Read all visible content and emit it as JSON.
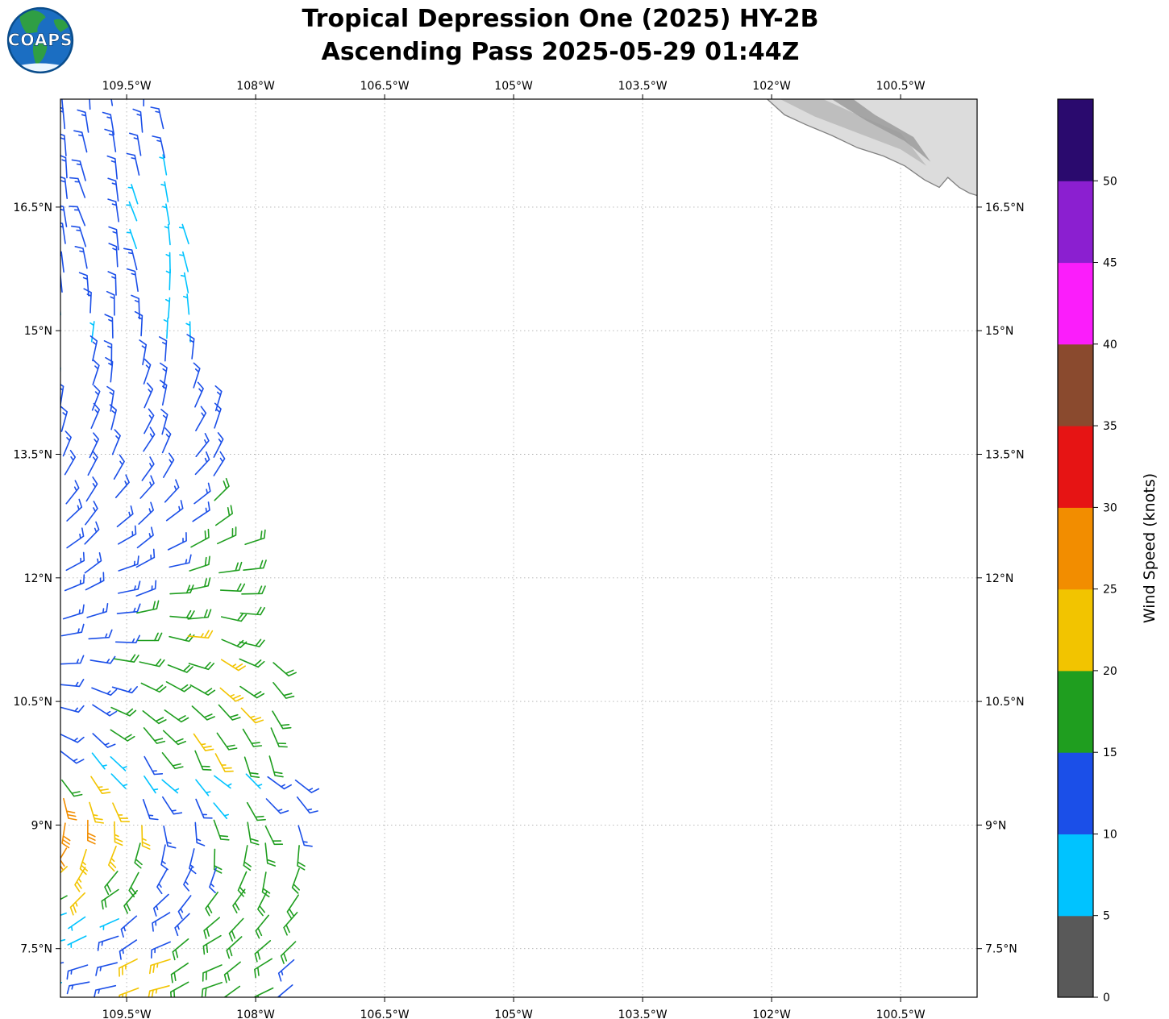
{
  "logo": {
    "text": "COAPS"
  },
  "chart_data": {
    "type": "wind_barb_map",
    "title": "Tropical Depression One (2025) HY-2B",
    "subtitle": "Ascending Pass 2025-05-29 01:44Z",
    "grid": "dashed",
    "x_axis": {
      "ticks": [
        "109.5°W",
        "108°W",
        "106.5°W",
        "105°W",
        "103.5°W",
        "102°W",
        "100.5°W"
      ],
      "tick_lons": [
        -109.5,
        -108,
        -106.5,
        -105,
        -103.5,
        -102,
        -100.5
      ],
      "lon_range": [
        -110.27,
        -99.61
      ]
    },
    "y_axis": {
      "ticks": [
        "16.5°N",
        "15°N",
        "13.5°N",
        "12°N",
        "10.5°N",
        "9°N",
        "7.5°N"
      ],
      "tick_lats": [
        16.5,
        15,
        13.5,
        12,
        10.5,
        9,
        7.5
      ],
      "lat_range": [
        6.91,
        17.81
      ]
    },
    "colorbar": {
      "label": "Wind Speed (knots)",
      "units": "knots",
      "tick_values": [
        0,
        5,
        10,
        15,
        20,
        25,
        30,
        35,
        40,
        45,
        50
      ],
      "vmax": 55,
      "segments": [
        {
          "min": 0,
          "max": 5,
          "color": "#595959"
        },
        {
          "min": 5,
          "max": 10,
          "color": "#00c3ff"
        },
        {
          "min": 10,
          "max": 15,
          "color": "#1b4fe8"
        },
        {
          "min": 15,
          "max": 20,
          "color": "#1f9e1f"
        },
        {
          "min": 20,
          "max": 25,
          "color": "#f2c400"
        },
        {
          "min": 25,
          "max": 30,
          "color": "#f28d00"
        },
        {
          "min": 30,
          "max": 35,
          "color": "#e61414"
        },
        {
          "min": 35,
          "max": 40,
          "color": "#8a4a2e"
        },
        {
          "min": 40,
          "max": 45,
          "color": "#fb1dfb"
        },
        {
          "min": 45,
          "max": 50,
          "color": "#8b1fd0"
        },
        {
          "min": 50,
          "max": 55,
          "color": "#2a0a6e"
        }
      ]
    },
    "barbs": {
      "comment": "rows of wind barbs; row_format fields; speeds in knots from speed_codes; dir = direction wind is from (deg), ddir = per-column change eastward",
      "row_format": [
        "lat",
        "dir_from_deg",
        "ddir_per_col",
        "speed_codes"
      ],
      "lon0": -110.24,
      "dlon": 0.3,
      "speed_codes": {
        "C": 7,
        "B": 13,
        "G": 18,
        "Y": 23,
        "O": 28
      },
      "rows": [
        [
          17.7,
          355,
          0,
          "BBBB"
        ],
        [
          17.42,
          352,
          0,
          "BBBBB"
        ],
        [
          17.14,
          350,
          0,
          "BBBBB"
        ],
        [
          16.86,
          350,
          0,
          "BBBBC"
        ],
        [
          16.58,
          347,
          0,
          "BBBCC"
        ],
        [
          16.3,
          345,
          0,
          "BBBCC"
        ],
        [
          16.02,
          348,
          0,
          "BBBCCC"
        ],
        [
          15.74,
          352,
          0,
          "BBBBCC"
        ],
        [
          15.46,
          356,
          0,
          "BBBBCC"
        ],
        [
          15.18,
          0,
          0,
          "CBBBCC"
        ],
        [
          14.9,
          2,
          0,
          "CCBBCC"
        ],
        [
          14.62,
          6,
          0,
          "CBBBBB"
        ],
        [
          14.34,
          10,
          1,
          "CBBBBB"
        ],
        [
          14.06,
          14,
          1,
          "BBBBBBB"
        ],
        [
          13.78,
          18,
          1,
          "BBBBBBB"
        ],
        [
          13.5,
          22,
          2,
          "BBBBBBB"
        ],
        [
          13.22,
          27,
          2,
          "BBBBBBB"
        ],
        [
          12.94,
          33,
          3,
          "BBBBBBG"
        ],
        [
          12.66,
          40,
          3,
          "BBBBBBG"
        ],
        [
          12.38,
          48,
          3,
          "BBBBBGGG"
        ],
        [
          12.1,
          56,
          4,
          "BBBBBGGG"
        ],
        [
          11.82,
          64,
          4,
          "BBBBGGGG"
        ],
        [
          11.54,
          72,
          4,
          "BBBGGGGG"
        ],
        [
          11.26,
          82,
          4,
          "BBBGGYGG"
        ],
        [
          10.98,
          92,
          4,
          "BBGGGGYGG"
        ],
        [
          10.7,
          102,
          4,
          "BBBGGGYGG"
        ],
        [
          10.42,
          112,
          4,
          "BBGGGGGYG"
        ],
        [
          10.14,
          122,
          4,
          "BBGGGYGGG"
        ],
        [
          9.86,
          132,
          4,
          "BCCBGGYGG"
        ],
        [
          9.58,
          145,
          -2,
          "GYCCCCCCBB"
        ],
        [
          9.3,
          165,
          -3,
          "OYYBBBCGBB"
        ],
        [
          9.02,
          185,
          -3,
          "OOYYBBGGGB"
        ],
        [
          8.74,
          205,
          -3,
          "OYYGBBGGGG"
        ],
        [
          8.46,
          220,
          -3,
          "YYGGBBBGGG"
        ],
        [
          8.18,
          235,
          -3,
          "GYGGBBGGGG"
        ],
        [
          7.9,
          245,
          -3,
          "CCCBBBGGGG"
        ],
        [
          7.62,
          252,
          -3,
          "CCBBBGGGGG"
        ],
        [
          7.34,
          258,
          -3,
          "BBBYYGGGGB"
        ],
        [
          7.06,
          262,
          -3,
          "CBBYYGGGGB"
        ]
      ]
    },
    "coast": {
      "land_color": "#dcdcdc",
      "coast_color": "#808080",
      "outline": [
        [
          -102.05,
          17.81
        ],
        [
          -101.85,
          17.62
        ],
        [
          -101.6,
          17.5
        ],
        [
          -101.3,
          17.37
        ],
        [
          -101.0,
          17.22
        ],
        [
          -100.7,
          17.12
        ],
        [
          -100.45,
          17.0
        ],
        [
          -100.22,
          16.83
        ],
        [
          -100.05,
          16.74
        ],
        [
          -99.95,
          16.86
        ],
        [
          -99.82,
          16.74
        ],
        [
          -99.7,
          16.67
        ],
        [
          -99.55,
          16.62
        ]
      ],
      "shades": [
        {
          "color": "#b9b9b9",
          "points": [
            [
              -101.9,
              17.81
            ],
            [
              -101.5,
              17.6
            ],
            [
              -101.0,
              17.4
            ],
            [
              -100.5,
              17.2
            ],
            [
              -100.2,
              17.0
            ],
            [
              -100.5,
              17.4
            ],
            [
              -101.0,
              17.62
            ],
            [
              -101.4,
              17.81
            ]
          ]
        },
        {
          "color": "#9b9b9b",
          "points": [
            [
              -101.3,
              17.81
            ],
            [
              -100.9,
              17.55
            ],
            [
              -100.45,
              17.3
            ],
            [
              -100.15,
              17.05
            ],
            [
              -100.35,
              17.35
            ],
            [
              -100.8,
              17.62
            ],
            [
              -101.05,
              17.81
            ]
          ]
        }
      ]
    }
  }
}
